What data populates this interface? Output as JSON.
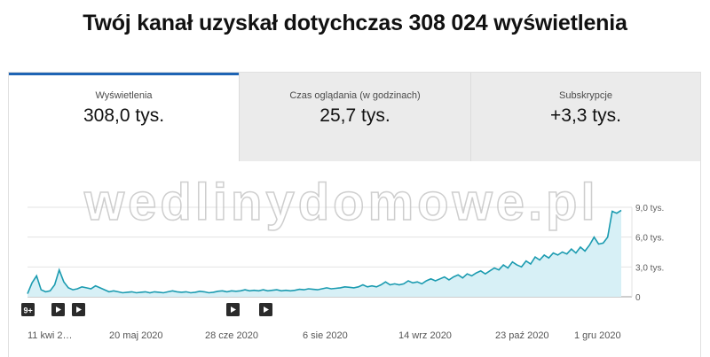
{
  "headline": "Twój kanał uzyskał dotychczas 308 024 wyświetlenia",
  "tabs": [
    {
      "label": "Wyświetlenia",
      "value": "308,0 tys."
    },
    {
      "label": "Czas oglądania (w godzinach)",
      "value": "25,7 tys."
    },
    {
      "label": "Subskrypcje",
      "value": "+3,3 tys."
    }
  ],
  "colors": {
    "accent": "#1e64b4",
    "line": "#1b9bb0",
    "fill": "#d7f0f6"
  },
  "markers": [
    {
      "label": "9+",
      "icon": "badge"
    },
    {
      "label": "",
      "icon": "play-icon"
    },
    {
      "label": "",
      "icon": "play-icon"
    },
    {
      "label": "",
      "icon": "play-icon"
    },
    {
      "label": "",
      "icon": "play-icon"
    }
  ],
  "watermark": "wedlinydomowe.pl",
  "chart_data": {
    "type": "area",
    "title": "",
    "ylim": [
      0,
      9
    ],
    "yticks": [
      "9,0 tys.",
      "6,0 tys.",
      "3,0 tys.",
      "0"
    ],
    "ytick_values": [
      9,
      6,
      3,
      0
    ],
    "xticks": [
      "11 kwi 2…",
      "20 maj 2020",
      "28 cze 2020",
      "6 sie 2020",
      "14 wrz 2020",
      "23 paź 2020",
      "1 gru 2020"
    ],
    "grid": true,
    "series": [
      {
        "values": [
          0.3,
          1.4,
          2.1,
          0.7,
          0.5,
          0.6,
          1.2,
          2.7,
          1.5,
          0.9,
          0.7,
          0.8,
          1.0,
          0.9,
          0.8,
          1.1,
          0.9,
          0.7,
          0.5,
          0.6,
          0.5,
          0.4,
          0.45,
          0.5,
          0.4,
          0.45,
          0.5,
          0.4,
          0.5,
          0.45,
          0.4,
          0.5,
          0.6,
          0.5,
          0.45,
          0.5,
          0.4,
          0.45,
          0.55,
          0.5,
          0.4,
          0.45,
          0.55,
          0.6,
          0.5,
          0.6,
          0.55,
          0.6,
          0.7,
          0.6,
          0.65,
          0.6,
          0.7,
          0.6,
          0.65,
          0.7,
          0.6,
          0.65,
          0.6,
          0.65,
          0.75,
          0.7,
          0.8,
          0.75,
          0.7,
          0.8,
          0.9,
          0.8,
          0.85,
          0.9,
          1.0,
          0.95,
          0.9,
          1.0,
          1.2,
          1.0,
          1.1,
          1.0,
          1.2,
          1.5,
          1.2,
          1.3,
          1.2,
          1.3,
          1.6,
          1.4,
          1.5,
          1.3,
          1.6,
          1.8,
          1.6,
          1.8,
          2.0,
          1.7,
          2.0,
          2.2,
          1.9,
          2.3,
          2.1,
          2.4,
          2.6,
          2.3,
          2.6,
          2.9,
          2.7,
          3.2,
          2.9,
          3.5,
          3.2,
          3.0,
          3.6,
          3.3,
          4.0,
          3.7,
          4.2,
          3.9,
          4.4,
          4.2,
          4.5,
          4.3,
          4.8,
          4.4,
          5.0,
          4.6,
          5.2,
          6.0,
          5.3,
          5.4,
          6.0,
          8.6,
          8.4,
          8.7
        ]
      }
    ]
  }
}
